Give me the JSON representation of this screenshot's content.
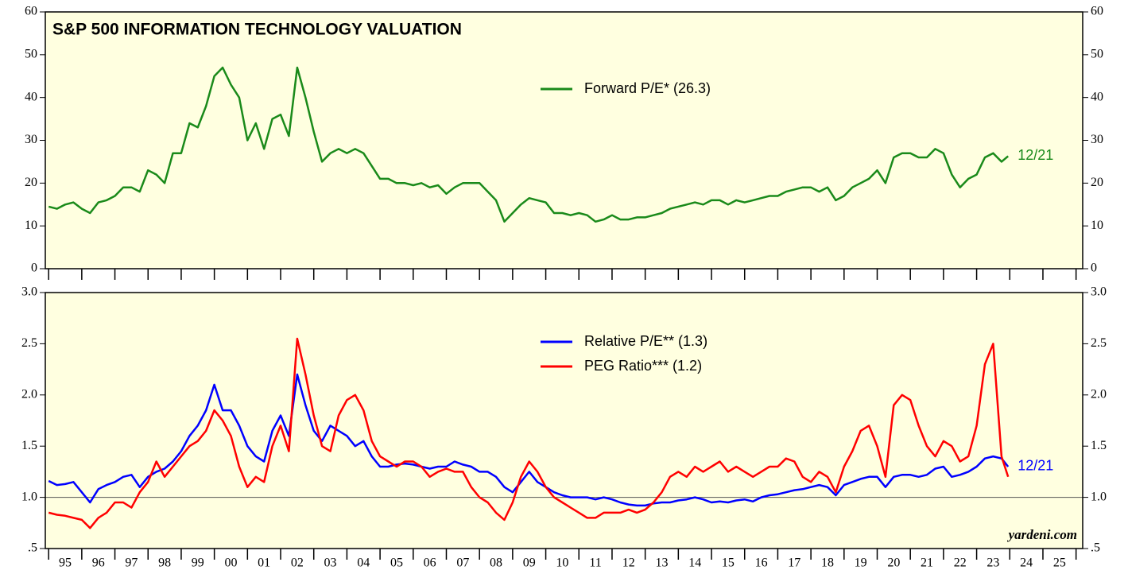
{
  "chart_data": [
    {
      "type": "line",
      "title": "S&P 500 INFORMATION TECHNOLOGY VALUATION",
      "x": [
        1995,
        1995.25,
        1995.5,
        1995.75,
        1996,
        1996.25,
        1996.5,
        1996.75,
        1997,
        1997.25,
        1997.5,
        1997.75,
        1998,
        1998.25,
        1998.5,
        1998.75,
        1999,
        1999.25,
        1999.5,
        1999.75,
        2000,
        2000.25,
        2000.5,
        2000.75,
        2001,
        2001.25,
        2001.5,
        2001.75,
        2002,
        2002.25,
        2002.5,
        2002.75,
        2003,
        2003.25,
        2003.5,
        2003.75,
        2004,
        2004.25,
        2004.5,
        2004.75,
        2005,
        2005.25,
        2005.5,
        2005.75,
        2006,
        2006.25,
        2006.5,
        2006.75,
        2007,
        2007.25,
        2007.5,
        2007.75,
        2008,
        2008.25,
        2008.5,
        2008.75,
        2009,
        2009.25,
        2009.5,
        2009.75,
        2010,
        2010.25,
        2010.5,
        2010.75,
        2011,
        2011.25,
        2011.5,
        2011.75,
        2012,
        2012.25,
        2012.5,
        2012.75,
        2013,
        2013.25,
        2013.5,
        2013.75,
        2014,
        2014.25,
        2014.5,
        2014.75,
        2015,
        2015.25,
        2015.5,
        2015.75,
        2016,
        2016.25,
        2016.5,
        2016.75,
        2017,
        2017.25,
        2017.5,
        2017.75,
        2018,
        2018.25,
        2018.5,
        2018.75,
        2019,
        2019.25,
        2019.5,
        2019.75,
        2020,
        2020.25,
        2020.5,
        2020.75,
        2021,
        2021.25,
        2021.5,
        2021.75,
        2022,
        2022.25,
        2022.5,
        2022.75,
        2023,
        2023.25,
        2023.5,
        2023.75,
        2023.95
      ],
      "series": [
        {
          "name": "Forward P/E* (26.3)",
          "color": "#1a8a1a",
          "end_label": "12/21",
          "values": [
            14.5,
            14,
            15,
            15.5,
            14,
            13,
            15.5,
            16,
            17,
            19,
            19,
            18,
            23,
            22,
            20,
            27,
            27,
            34,
            33,
            38,
            45,
            47,
            43,
            40,
            30,
            34,
            28,
            35,
            36,
            31,
            47,
            40,
            32,
            25,
            27,
            28,
            27,
            28,
            27,
            24,
            21,
            21,
            20,
            20,
            19.5,
            20,
            19,
            19.5,
            17.5,
            19,
            20,
            20,
            20,
            18,
            16,
            11,
            13,
            15,
            16.5,
            16,
            15.5,
            13,
            13,
            12.5,
            13,
            12.5,
            11,
            11.5,
            12.5,
            11.5,
            11.5,
            12,
            12,
            12.5,
            13,
            14,
            14.5,
            15,
            15.5,
            15,
            16,
            16,
            15,
            16,
            15.5,
            16,
            16.5,
            17,
            17,
            18,
            18.5,
            19,
            19,
            18,
            19,
            16,
            17,
            19,
            20,
            21,
            23,
            20,
            26,
            27,
            27,
            26,
            26,
            28,
            27,
            22,
            19,
            21,
            22,
            26,
            27,
            25,
            26.3
          ]
        }
      ],
      "xlim": [
        1994.9,
        2026.2
      ],
      "xticks": [
        1995,
        1996,
        1997,
        1998,
        1999,
        2000,
        2001,
        2002,
        2003,
        2004,
        2005,
        2006,
        2007,
        2008,
        2009,
        2010,
        2011,
        2012,
        2013,
        2014,
        2015,
        2016,
        2017,
        2018,
        2019,
        2020,
        2021,
        2022,
        2023,
        2024,
        2025,
        2026
      ],
      "ylim": [
        0,
        60
      ],
      "yticks": [
        0,
        10,
        20,
        30,
        40,
        50,
        60
      ],
      "background": "#ffffe0"
    },
    {
      "type": "line",
      "x": [
        1995,
        1995.25,
        1995.5,
        1995.75,
        1996,
        1996.25,
        1996.5,
        1996.75,
        1997,
        1997.25,
        1997.5,
        1997.75,
        1998,
        1998.25,
        1998.5,
        1998.75,
        1999,
        1999.25,
        1999.5,
        1999.75,
        2000,
        2000.25,
        2000.5,
        2000.75,
        2001,
        2001.25,
        2001.5,
        2001.75,
        2002,
        2002.25,
        2002.5,
        2002.75,
        2003,
        2003.25,
        2003.5,
        2003.75,
        2004,
        2004.25,
        2004.5,
        2004.75,
        2005,
        2005.25,
        2005.5,
        2005.75,
        2006,
        2006.25,
        2006.5,
        2006.75,
        2007,
        2007.25,
        2007.5,
        2007.75,
        2008,
        2008.25,
        2008.5,
        2008.75,
        2009,
        2009.25,
        2009.5,
        2009.75,
        2010,
        2010.25,
        2010.5,
        2010.75,
        2011,
        2011.25,
        2011.5,
        2011.75,
        2012,
        2012.25,
        2012.5,
        2012.75,
        2013,
        2013.25,
        2013.5,
        2013.75,
        2014,
        2014.25,
        2014.5,
        2014.75,
        2015,
        2015.25,
        2015.5,
        2015.75,
        2016,
        2016.25,
        2016.5,
        2016.75,
        2017,
        2017.25,
        2017.5,
        2017.75,
        2018,
        2018.25,
        2018.5,
        2018.75,
        2019,
        2019.25,
        2019.5,
        2019.75,
        2020,
        2020.25,
        2020.5,
        2020.75,
        2021,
        2021.25,
        2021.5,
        2021.75,
        2022,
        2022.25,
        2022.5,
        2022.75,
        2023,
        2023.25,
        2023.5,
        2023.75,
        2023.95
      ],
      "series": [
        {
          "name": "Relative P/E** (1.3)",
          "color": "#0000ff",
          "end_label": "12/21",
          "values": [
            1.16,
            1.12,
            1.13,
            1.15,
            1.05,
            0.95,
            1.08,
            1.12,
            1.15,
            1.2,
            1.22,
            1.1,
            1.2,
            1.25,
            1.28,
            1.35,
            1.45,
            1.6,
            1.7,
            1.85,
            2.1,
            1.85,
            1.85,
            1.7,
            1.5,
            1.4,
            1.35,
            1.65,
            1.8,
            1.6,
            2.2,
            1.9,
            1.65,
            1.55,
            1.7,
            1.65,
            1.6,
            1.5,
            1.55,
            1.4,
            1.3,
            1.3,
            1.32,
            1.33,
            1.32,
            1.3,
            1.28,
            1.3,
            1.3,
            1.35,
            1.32,
            1.3,
            1.25,
            1.25,
            1.2,
            1.1,
            1.05,
            1.15,
            1.25,
            1.15,
            1.1,
            1.05,
            1.02,
            1.0,
            1.0,
            1.0,
            0.98,
            1.0,
            0.98,
            0.95,
            0.93,
            0.92,
            0.92,
            0.94,
            0.95,
            0.95,
            0.97,
            0.98,
            1.0,
            0.98,
            0.95,
            0.96,
            0.95,
            0.97,
            0.98,
            0.96,
            1.0,
            1.02,
            1.03,
            1.05,
            1.07,
            1.08,
            1.1,
            1.12,
            1.1,
            1.02,
            1.12,
            1.15,
            1.18,
            1.2,
            1.2,
            1.1,
            1.2,
            1.22,
            1.22,
            1.2,
            1.22,
            1.28,
            1.3,
            1.2,
            1.22,
            1.25,
            1.3,
            1.38,
            1.4,
            1.38,
            1.3
          ]
        },
        {
          "name": "PEG Ratio*** (1.2)",
          "color": "#ff0000",
          "values": [
            0.85,
            0.83,
            0.82,
            0.8,
            0.78,
            0.7,
            0.8,
            0.85,
            0.95,
            0.95,
            0.9,
            1.05,
            1.15,
            1.35,
            1.2,
            1.3,
            1.4,
            1.5,
            1.55,
            1.65,
            1.85,
            1.75,
            1.6,
            1.3,
            1.1,
            1.2,
            1.15,
            1.5,
            1.7,
            1.45,
            2.55,
            2.2,
            1.8,
            1.5,
            1.45,
            1.8,
            1.95,
            2.0,
            1.85,
            1.55,
            1.4,
            1.35,
            1.3,
            1.35,
            1.35,
            1.3,
            1.2,
            1.25,
            1.28,
            1.25,
            1.25,
            1.1,
            1.0,
            0.95,
            0.85,
            0.78,
            0.95,
            1.2,
            1.35,
            1.25,
            1.1,
            1.0,
            0.95,
            0.9,
            0.85,
            0.8,
            0.8,
            0.85,
            0.85,
            0.85,
            0.88,
            0.85,
            0.88,
            0.95,
            1.05,
            1.2,
            1.25,
            1.2,
            1.3,
            1.25,
            1.3,
            1.35,
            1.25,
            1.3,
            1.25,
            1.2,
            1.25,
            1.3,
            1.3,
            1.38,
            1.35,
            1.2,
            1.15,
            1.25,
            1.2,
            1.05,
            1.3,
            1.45,
            1.65,
            1.7,
            1.5,
            1.2,
            1.9,
            2.0,
            1.95,
            1.7,
            1.5,
            1.4,
            1.55,
            1.5,
            1.35,
            1.4,
            1.7,
            2.3,
            2.5,
            1.4,
            1.2
          ]
        }
      ],
      "xlim": [
        1994.9,
        2026.2
      ],
      "xticks": [
        1995,
        1996,
        1997,
        1998,
        1999,
        2000,
        2001,
        2002,
        2003,
        2004,
        2005,
        2006,
        2007,
        2008,
        2009,
        2010,
        2011,
        2012,
        2013,
        2014,
        2015,
        2016,
        2017,
        2018,
        2019,
        2020,
        2021,
        2022,
        2023,
        2024,
        2025,
        2026
      ],
      "year_labels": [
        "95",
        "96",
        "97",
        "98",
        "99",
        "00",
        "01",
        "02",
        "03",
        "04",
        "05",
        "06",
        "07",
        "08",
        "09",
        "10",
        "11",
        "12",
        "13",
        "14",
        "15",
        "16",
        "17",
        "18",
        "19",
        "20",
        "21",
        "22",
        "23",
        "24",
        "25"
      ],
      "ylim": [
        0.5,
        3
      ],
      "yticks": [
        {
          "value": 0.5,
          "label": ".5"
        },
        {
          "value": 1,
          "label": "1.0"
        },
        {
          "value": 1.5,
          "label": "1.5"
        },
        {
          "value": 2,
          "label": "2.0"
        },
        {
          "value": 2.5,
          "label": "2.5"
        },
        {
          "value": 3,
          "label": "3.0"
        }
      ],
      "reference_line": 1,
      "background": "#ffffe0",
      "source": "yardeni.com"
    }
  ]
}
